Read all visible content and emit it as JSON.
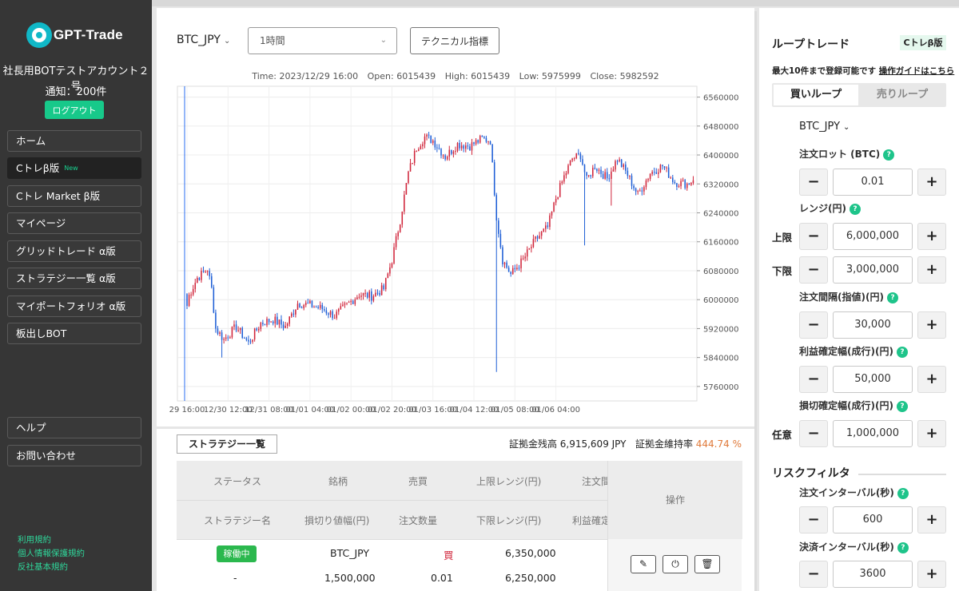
{
  "sidebar": {
    "logo_text": "GPT-Trade",
    "account": "社長用BOTテストアカウント２号",
    "notify": "通知：200件",
    "logout": "ログアウト",
    "nav": [
      {
        "label": "ホーム"
      },
      {
        "label": "Cトレβ版",
        "badge": "New",
        "active": true
      },
      {
        "label": "Cトレ Market β版"
      },
      {
        "label": "マイページ"
      },
      {
        "label": "グリッドトレード α版"
      },
      {
        "label": "ストラテジー一覧 α版"
      },
      {
        "label": "マイポートフォリオ α版"
      },
      {
        "label": "板出しBOT"
      }
    ],
    "bottom_nav": [
      {
        "label": "ヘルプ"
      },
      {
        "label": "お問い合わせ"
      }
    ],
    "footer_links": [
      "利用規約",
      "個人情報保護規約",
      "反社基本規約"
    ]
  },
  "toolbar": {
    "pair": "BTC_JPY",
    "timeframe": "1時間",
    "tech_button": "テクニカル指標"
  },
  "ohlc": {
    "time": "Time: 2023/12/29 16:00",
    "open": "Open: 6015439",
    "high": "High: 6015439",
    "low": "Low: 5975999",
    "close": "Close: 5982592"
  },
  "chart_data": {
    "type": "candlestick",
    "series": [
      {
        "name": "BTC_JPY"
      }
    ],
    "y_ticks": [
      "6560000",
      "6480000",
      "6400000",
      "6320000",
      "6240000",
      "6160000",
      "6080000",
      "6000000",
      "5920000",
      "5840000",
      "5760000"
    ],
    "x_ticks": [
      "29 16:00",
      "12/30 12:00",
      "12/31 08:00",
      "01/01 04:00",
      "01/02 00:00",
      "01/02 20:00",
      "01/03 16:00",
      "01/04 12:00",
      "01/05 08:00",
      "01/06 04:00"
    ],
    "ylim": [
      5720000,
      6590000
    ],
    "up_color": "#d0243a",
    "down_color": "#1f5fd6",
    "anchors": [
      [
        0,
        6000000
      ],
      [
        5,
        6060000
      ],
      [
        10,
        6085000
      ],
      [
        12,
        6030000
      ],
      [
        14,
        5920000
      ],
      [
        18,
        5890000
      ],
      [
        24,
        5925000
      ],
      [
        30,
        5880000
      ],
      [
        36,
        5935000
      ],
      [
        42,
        5945000
      ],
      [
        48,
        5925000
      ],
      [
        54,
        5990000
      ],
      [
        60,
        5985000
      ],
      [
        66,
        5975000
      ],
      [
        72,
        5955000
      ],
      [
        78,
        5985000
      ],
      [
        84,
        6015000
      ],
      [
        90,
        6010000
      ],
      [
        96,
        6030000
      ],
      [
        100,
        6110000
      ],
      [
        104,
        6220000
      ],
      [
        108,
        6350000
      ],
      [
        112,
        6420000
      ],
      [
        116,
        6450000
      ],
      [
        120,
        6440000
      ],
      [
        126,
        6395000
      ],
      [
        132,
        6430000
      ],
      [
        138,
        6425000
      ],
      [
        144,
        6445000
      ],
      [
        148,
        6440000
      ],
      [
        151,
        6230000
      ],
      [
        154,
        6110000
      ],
      [
        158,
        6070000
      ],
      [
        164,
        6110000
      ],
      [
        170,
        6165000
      ],
      [
        176,
        6200000
      ],
      [
        180,
        6280000
      ],
      [
        184,
        6340000
      ],
      [
        188,
        6390000
      ],
      [
        192,
        6400000
      ],
      [
        195,
        6330000
      ],
      [
        199,
        6370000
      ],
      [
        205,
        6335000
      ],
      [
        210,
        6390000
      ],
      [
        215,
        6345000
      ],
      [
        220,
        6290000
      ],
      [
        226,
        6350000
      ],
      [
        232,
        6370000
      ],
      [
        238,
        6325000
      ],
      [
        244,
        6320000
      ],
      [
        247,
        6330000
      ]
    ],
    "n_candles": 248
  },
  "strategy": {
    "tab": "ストラテジー一覧",
    "margin_label": "証拠金残高 6,915,609 JPY",
    "rate_label": "証拠金維持率",
    "rate_value": "444.74 %",
    "headers_row1": [
      "ステータス",
      "銘柄",
      "売買",
      "上限レンジ(円)",
      "注文間"
    ],
    "headers_row2": [
      "ストラテジー名",
      "損切り値幅(円)",
      "注文数量",
      "下限レンジ(円)",
      "利益確定"
    ],
    "ops_header": "操作",
    "row": {
      "status": "稼働中",
      "symbol": "BTC_JPY",
      "side": "買",
      "upper": "6,350,000",
      "name": "-",
      "stop": "1,500,000",
      "qty": "0.01",
      "lower": "6,250,000"
    }
  },
  "loop": {
    "title": "ループトレード",
    "badge": "Cトレβ版",
    "note": "最大10件まで登録可能です",
    "guide": "操作ガイドはこちら",
    "tab_buy": "買いループ",
    "tab_sell": "売りループ",
    "pair": "BTC_JPY",
    "lot_label": "注文ロット (BTC)",
    "lot_value": "0.01",
    "range_label": "レンジ(円)",
    "upper_side": "上限",
    "upper_value": "6,000,000",
    "lower_side": "下限",
    "lower_value": "3,000,000",
    "interval_label": "注文間隔(指値)(円)",
    "interval_value": "30,000",
    "profit_label": "利益確定幅(成行)(円)",
    "profit_value": "50,000",
    "stop_label": "損切確定幅(成行)(円)",
    "stop_side": "任意",
    "stop_value": "1,000,000",
    "risk_title": "リスクフィルタ",
    "order_interval_label": "注文インターバル(秒)",
    "order_interval_value": "600",
    "settle_interval_label": "決済インターバル(秒)",
    "settle_interval_value": "3600",
    "help_glyph": "?",
    "minus": "−",
    "plus": "+"
  }
}
